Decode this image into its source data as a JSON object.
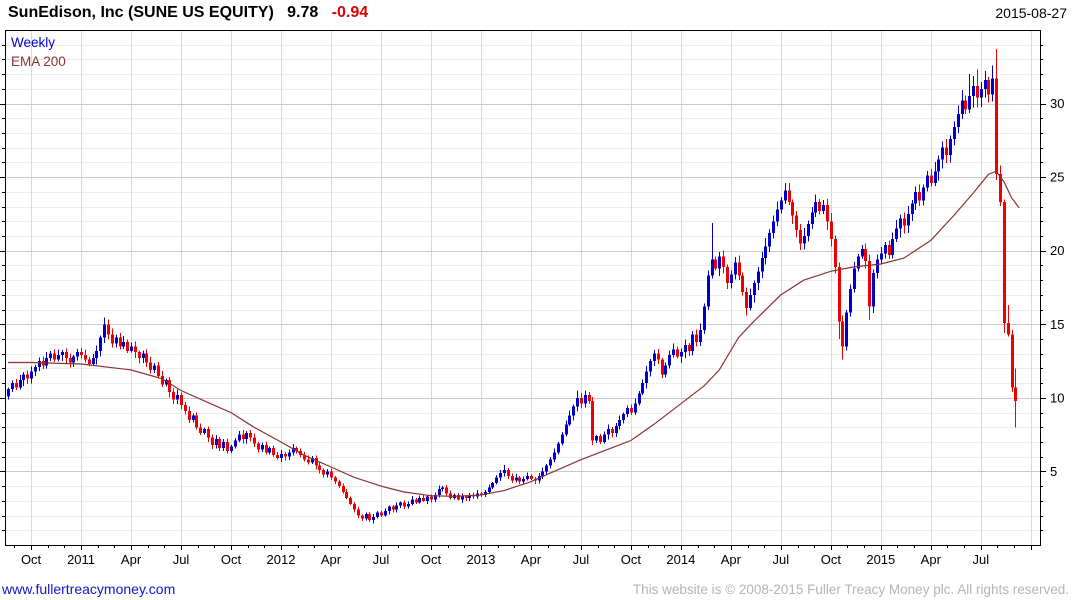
{
  "header": {
    "title": "SunEdison, Inc (SUNE US EQUITY)",
    "last_price": "9.78",
    "change": "-0.94",
    "date": "2015-08-27"
  },
  "legend": {
    "timeframe": "Weekly",
    "overlay": "EMA 200"
  },
  "footer": {
    "site": "www.fullertreacymoney.com",
    "copyright": "This website is © 2008-2015 Fuller Treacy Money plc. All rights reserved."
  },
  "chart_data": {
    "type": "candlestick",
    "title": "SunEdison, Inc (SUNE US EQUITY)",
    "interval": "weekly",
    "last_price": 9.78,
    "change": -0.94,
    "ylim": [
      0,
      35
    ],
    "y_ticks": [
      5,
      10,
      15,
      20,
      25,
      30
    ],
    "x_ticks": [
      {
        "label": "Oct",
        "i": 6
      },
      {
        "label": "2011",
        "i": 19
      },
      {
        "label": "Apr",
        "i": 32
      },
      {
        "label": "Jul",
        "i": 45
      },
      {
        "label": "Oct",
        "i": 58
      },
      {
        "label": "2012",
        "i": 71
      },
      {
        "label": "Apr",
        "i": 84
      },
      {
        "label": "Jul",
        "i": 97
      },
      {
        "label": "Oct",
        "i": 110
      },
      {
        "label": "2013",
        "i": 123
      },
      {
        "label": "Apr",
        "i": 136
      },
      {
        "label": "Jul",
        "i": 149
      },
      {
        "label": "Oct",
        "i": 162
      },
      {
        "label": "2014",
        "i": 175
      },
      {
        "label": "Apr",
        "i": 188
      },
      {
        "label": "Jul",
        "i": 201
      },
      {
        "label": "Oct",
        "i": 214
      },
      {
        "label": "2015",
        "i": 227
      },
      {
        "label": "Apr",
        "i": 240
      },
      {
        "label": "Jul",
        "i": 253
      }
    ],
    "colors": {
      "up": "#0000cc",
      "down": "#ee0000",
      "ema": "#8b3333",
      "grid_minor": "#ededed",
      "grid_major": "#c9c9c9",
      "grid_vertical": "#d9d9d9",
      "axis": "#000000",
      "change_text": "#e00000",
      "link": "#1414cc",
      "copyright_text": "#b4b4b4"
    },
    "first_open": 10.1,
    "closes": [
      10.6,
      11.0,
      10.7,
      11.2,
      11.6,
      11.3,
      11.8,
      12.1,
      12.5,
      12.2,
      12.7,
      13.0,
      12.6,
      12.9,
      13.1,
      12.7,
      12.4,
      12.8,
      13.1,
      12.9,
      12.6,
      12.3,
      12.7,
      13.2,
      14.1,
      15.0,
      14.3,
      13.7,
      14.1,
      13.5,
      13.8,
      13.2,
      13.5,
      13.1,
      12.7,
      13.0,
      12.4,
      11.9,
      12.2,
      11.5,
      10.9,
      11.2,
      10.4,
      9.9,
      10.2,
      9.5,
      9.1,
      8.5,
      8.8,
      8.0,
      7.6,
      7.9,
      7.3,
      6.8,
      7.2,
      6.6,
      7.0,
      6.4,
      6.7,
      7.1,
      7.5,
      7.2,
      7.6,
      7.3,
      6.9,
      6.5,
      6.8,
      6.3,
      6.6,
      6.1,
      5.9,
      6.2,
      6.0,
      6.3,
      6.6,
      6.4,
      6.1,
      5.8,
      5.6,
      5.9,
      5.4,
      5.1,
      4.8,
      5.0,
      4.6,
      4.3,
      4.0,
      3.6,
      3.2,
      2.8,
      2.4,
      2.0,
      1.8,
      2.1,
      1.7,
      1.9,
      2.2,
      2.0,
      2.3,
      2.6,
      2.4,
      2.7,
      2.9,
      2.6,
      2.8,
      3.1,
      2.9,
      3.2,
      3.0,
      3.3,
      3.1,
      3.4,
      3.8,
      3.9,
      3.5,
      3.2,
      3.4,
      3.1,
      3.3,
      3.2,
      3.4,
      3.3,
      3.5,
      3.4,
      3.6,
      3.9,
      4.2,
      4.6,
      4.9,
      5.1,
      4.7,
      4.4,
      4.6,
      4.3,
      4.5,
      4.7,
      4.5,
      4.4,
      4.7,
      5.0,
      5.4,
      5.8,
      6.3,
      6.9,
      7.5,
      8.2,
      8.8,
      9.4,
      10.0,
      9.6,
      10.2,
      9.8,
      7.1,
      7.4,
      7.0,
      7.5,
      7.9,
      7.6,
      8.1,
      8.5,
      8.9,
      9.3,
      9.0,
      9.6,
      10.3,
      11.0,
      11.8,
      12.5,
      13.0,
      12.6,
      11.6,
      12.2,
      12.9,
      13.3,
      12.8,
      13.1,
      13.6,
      13.2,
      14.3,
      13.8,
      14.6,
      16.2,
      18.3,
      19.4,
      18.8,
      19.6,
      18.9,
      17.8,
      18.4,
      19.2,
      18.3,
      17.2,
      16.1,
      17.0,
      17.8,
      18.6,
      19.5,
      20.3,
      21.2,
      22.0,
      22.8,
      23.4,
      24.1,
      23.3,
      22.4,
      21.4,
      20.5,
      21.0,
      21.8,
      22.6,
      23.3,
      22.7,
      23.1,
      22.0,
      20.8,
      18.9,
      15.2,
      13.5,
      15.8,
      17.4,
      18.8,
      19.6,
      20.1,
      19.3,
      16.2,
      18.5,
      19.4,
      19.8,
      20.4,
      19.7,
      20.8,
      21.5,
      22.2,
      21.7,
      22.5,
      23.2,
      24.0,
      23.4,
      24.3,
      25.1,
      24.6,
      25.4,
      26.2,
      27.0,
      26.5,
      27.6,
      28.4,
      29.3,
      30.2,
      29.6,
      30.5,
      31.2,
      30.4,
      31.0,
      31.6,
      30.6,
      31.7,
      25.2,
      23.3,
      15.1,
      14.3,
      10.72,
      9.78
    ],
    "wick_overrides": {
      "25": {
        "h": 15.45
      },
      "95": {
        "l": 1.45
      },
      "129": {
        "h": 5.45
      },
      "148": {
        "h": 10.5
      },
      "150": {
        "h": 10.5
      },
      "152": {
        "l": 6.8
      },
      "183": {
        "h": 21.9
      },
      "192": {
        "l": 15.6
      },
      "202": {
        "h": 24.6
      },
      "216": {
        "l": 14.0
      },
      "217": {
        "l": 12.6
      },
      "224": {
        "l": 15.3
      },
      "250": {
        "h": 32.0
      },
      "252": {
        "h": 32.3
      },
      "256": {
        "h": 32.6
      },
      "257": {
        "h": 33.7,
        "l": 24.8
      },
      "259": {
        "l": 14.4
      },
      "260": {
        "h": 16.3
      },
      "261": {
        "l": 10.4
      },
      "262": {
        "h": 12.0,
        "l": 8.0
      }
    },
    "ema_200": [
      [
        0,
        12.4
      ],
      [
        6,
        12.4
      ],
      [
        19,
        12.3
      ],
      [
        32,
        11.9
      ],
      [
        40,
        11.3
      ],
      [
        45,
        10.5
      ],
      [
        51,
        9.8
      ],
      [
        58,
        9.0
      ],
      [
        64,
        8.0
      ],
      [
        71,
        7.0
      ],
      [
        77,
        6.1
      ],
      [
        84,
        5.3
      ],
      [
        90,
        4.6
      ],
      [
        97,
        4.0
      ],
      [
        103,
        3.6
      ],
      [
        110,
        3.35
      ],
      [
        116,
        3.3
      ],
      [
        123,
        3.4
      ],
      [
        129,
        3.7
      ],
      [
        136,
        4.3
      ],
      [
        142,
        5.0
      ],
      [
        149,
        5.8
      ],
      [
        155,
        6.4
      ],
      [
        162,
        7.1
      ],
      [
        168,
        8.2
      ],
      [
        175,
        9.6
      ],
      [
        181,
        10.8
      ],
      [
        185,
        11.9
      ],
      [
        190,
        14.1
      ],
      [
        194,
        15.2
      ],
      [
        201,
        17.0
      ],
      [
        207,
        18.0
      ],
      [
        214,
        18.6
      ],
      [
        220,
        18.9
      ],
      [
        227,
        19.1
      ],
      [
        233,
        19.5
      ],
      [
        240,
        20.7
      ],
      [
        246,
        22.4
      ],
      [
        251,
        23.9
      ],
      [
        255,
        25.2
      ],
      [
        257,
        25.4
      ],
      [
        259,
        24.7
      ],
      [
        261,
        23.6
      ],
      [
        263,
        22.9
      ]
    ]
  }
}
